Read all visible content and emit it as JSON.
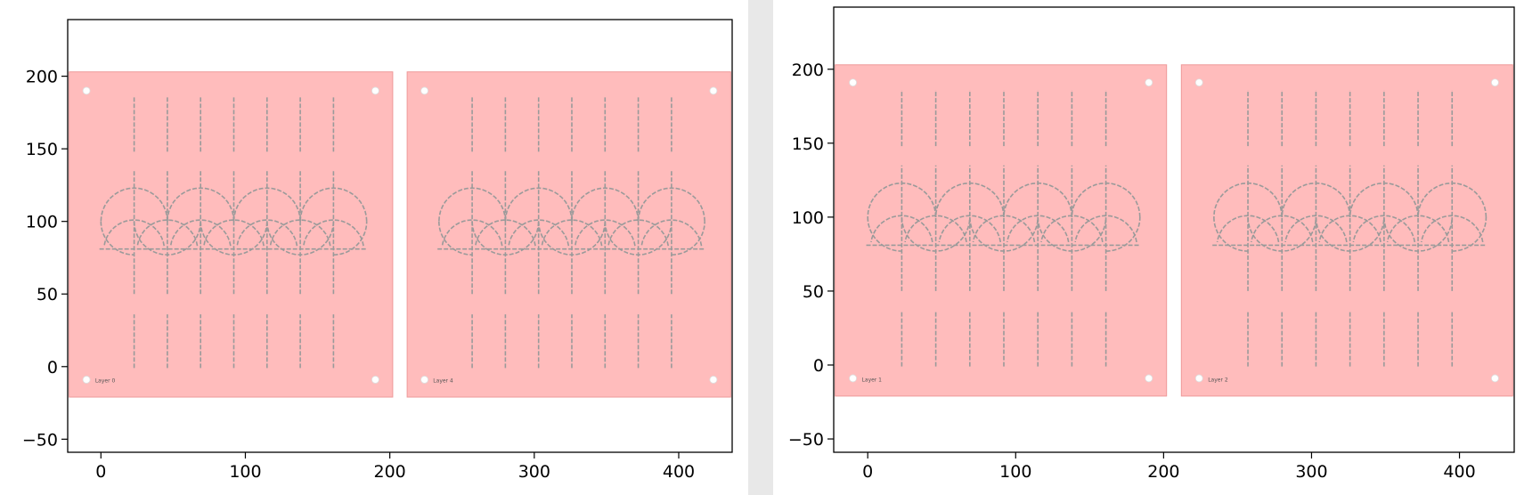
{
  "colors": {
    "panel_fill": "#ffbcbc",
    "panel_edge": "#ee9a9a",
    "cut_line": "#9a9a9a",
    "hole": "#ffffff",
    "axes": "#000000"
  },
  "chart_data": [
    {
      "type": "scatter",
      "title": "",
      "xlabel": "",
      "ylabel": "",
      "xlim": [
        -23,
        437
      ],
      "ylim": [
        -59,
        239
      ],
      "xticks": [
        0,
        100,
        200,
        300,
        400
      ],
      "yticks": [
        -50,
        0,
        50,
        100,
        150,
        200
      ],
      "xtick_labels": [
        "0",
        "100",
        "200",
        "300",
        "400"
      ],
      "ytick_labels": [
        "−50",
        "0",
        "50",
        "100",
        "150",
        "200"
      ],
      "grid": false,
      "panels": [
        {
          "x0": -22,
          "x1": 202,
          "y0": -21,
          "y1": 203,
          "label": "Layer 0",
          "holes": [
            [
              -10,
              190
            ],
            [
              190,
              190
            ],
            [
              -10,
              -9
            ],
            [
              190,
              -9
            ]
          ]
        },
        {
          "x0": 212,
          "x1": 436,
          "y0": -21,
          "y1": 203,
          "label": "Layer 4",
          "holes": [
            [
              224,
              190
            ],
            [
              424,
              190
            ],
            [
              224,
              -9
            ],
            [
              424,
              -9
            ]
          ]
        }
      ]
    },
    {
      "type": "scatter",
      "title": "",
      "xlabel": "",
      "ylabel": "",
      "xlim": [
        -23,
        437
      ],
      "ylim": [
        -59,
        242
      ],
      "xticks": [
        0,
        100,
        200,
        300,
        400
      ],
      "yticks": [
        -50,
        0,
        50,
        100,
        150,
        200
      ],
      "xtick_labels": [
        "0",
        "100",
        "200",
        "300",
        "400"
      ],
      "ytick_labels": [
        "−50",
        "0",
        "50",
        "100",
        "150",
        "200"
      ],
      "grid": false,
      "panels": [
        {
          "x0": -22,
          "x1": 202,
          "y0": -21,
          "y1": 203,
          "label": "Layer 1",
          "holes": [
            [
              -10,
              191
            ],
            [
              190,
              191
            ],
            [
              -10,
              -9
            ],
            [
              190,
              -9
            ]
          ]
        },
        {
          "x0": 212,
          "x1": 436,
          "y0": -21,
          "y1": 203,
          "label": "Layer 2",
          "holes": [
            [
              224,
              191
            ],
            [
              424,
              191
            ],
            [
              224,
              -9
            ],
            [
              424,
              -9
            ]
          ]
        }
      ]
    }
  ]
}
